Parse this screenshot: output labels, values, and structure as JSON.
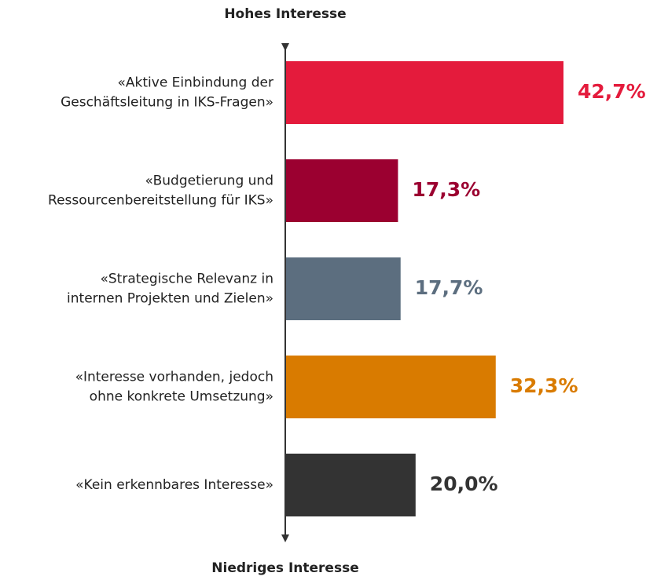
{
  "chart_data": {
    "type": "hbar",
    "top_label": "Hohes Interesse",
    "bottom_label": "Niedriges Interesse",
    "categories": [
      "«Aktive Einbindung der\nGeschäftsleitung in IKS-Fragen»",
      "«Budgetierung und\nRessourcenbereitstellung für IKS»",
      "«Strategische Relevanz in\ninternen Projekten und Zielen»",
      "«Interesse vorhanden, jedoch\nohne konkrete Umsetzung»",
      "«Kein erkennbares Interesse»"
    ],
    "values": [
      42.7,
      17.3,
      17.7,
      32.3,
      20.0
    ],
    "value_labels": [
      "42,7%",
      "17,3%",
      "17,7%",
      "32,3%",
      "20,0%"
    ],
    "colors": [
      "#e41b3c",
      "#9b0030",
      "#5c6e7f",
      "#d97b00",
      "#333333"
    ]
  }
}
